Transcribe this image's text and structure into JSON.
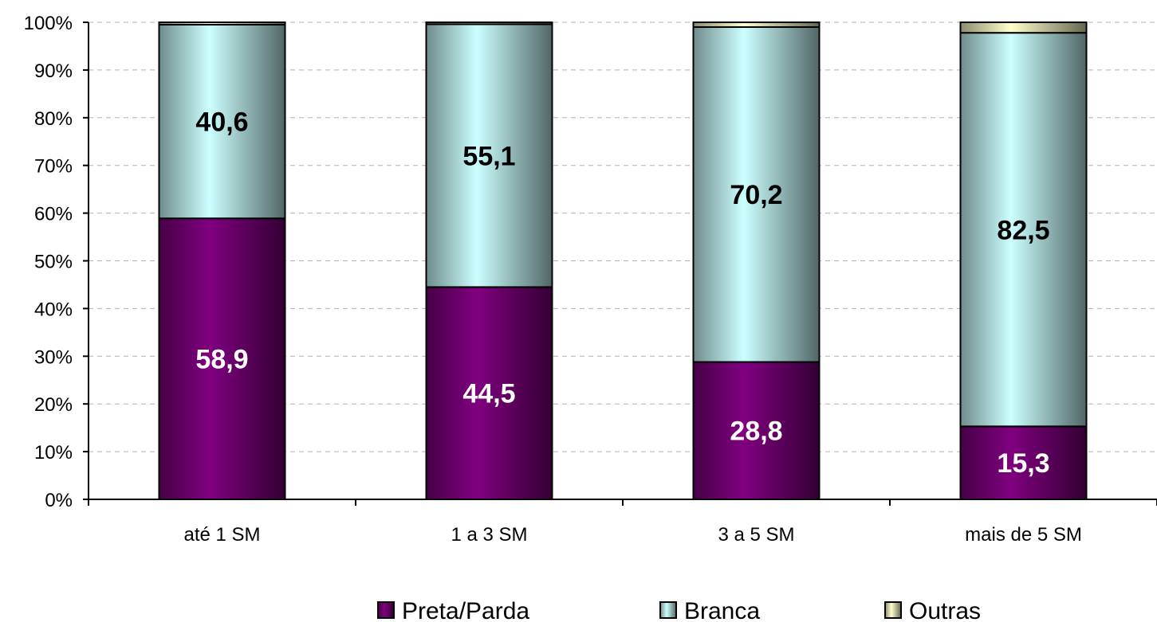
{
  "chart_data": {
    "type": "bar",
    "stacked": true,
    "categories": [
      "até 1 SM",
      "1 a 3 SM",
      "3 a 5 SM",
      "mais de 5 SM"
    ],
    "series": [
      {
        "name": "Preta/Parda",
        "values": [
          58.9,
          44.5,
          28.8,
          15.3
        ],
        "labels": [
          "58,9",
          "44,5",
          "28,8",
          "15,3"
        ],
        "color": "#800080",
        "label_color": "#ffffff"
      },
      {
        "name": "Branca",
        "values": [
          40.6,
          55.1,
          70.2,
          82.5
        ],
        "labels": [
          "40,6",
          "55,1",
          "70,2",
          "82,5"
        ],
        "color": "#ccffff",
        "label_color": "#000000"
      },
      {
        "name": "Outras",
        "values": [
          0.5,
          0.4,
          1.0,
          2.2
        ],
        "labels": [],
        "color": "#ffffcc",
        "label_color": "#000000"
      }
    ],
    "yticks": [
      "0%",
      "10%",
      "20%",
      "30%",
      "40%",
      "50%",
      "60%",
      "70%",
      "80%",
      "90%",
      "100%"
    ],
    "ylim": [
      0,
      100
    ],
    "grid": true,
    "legend_position": "bottom"
  }
}
